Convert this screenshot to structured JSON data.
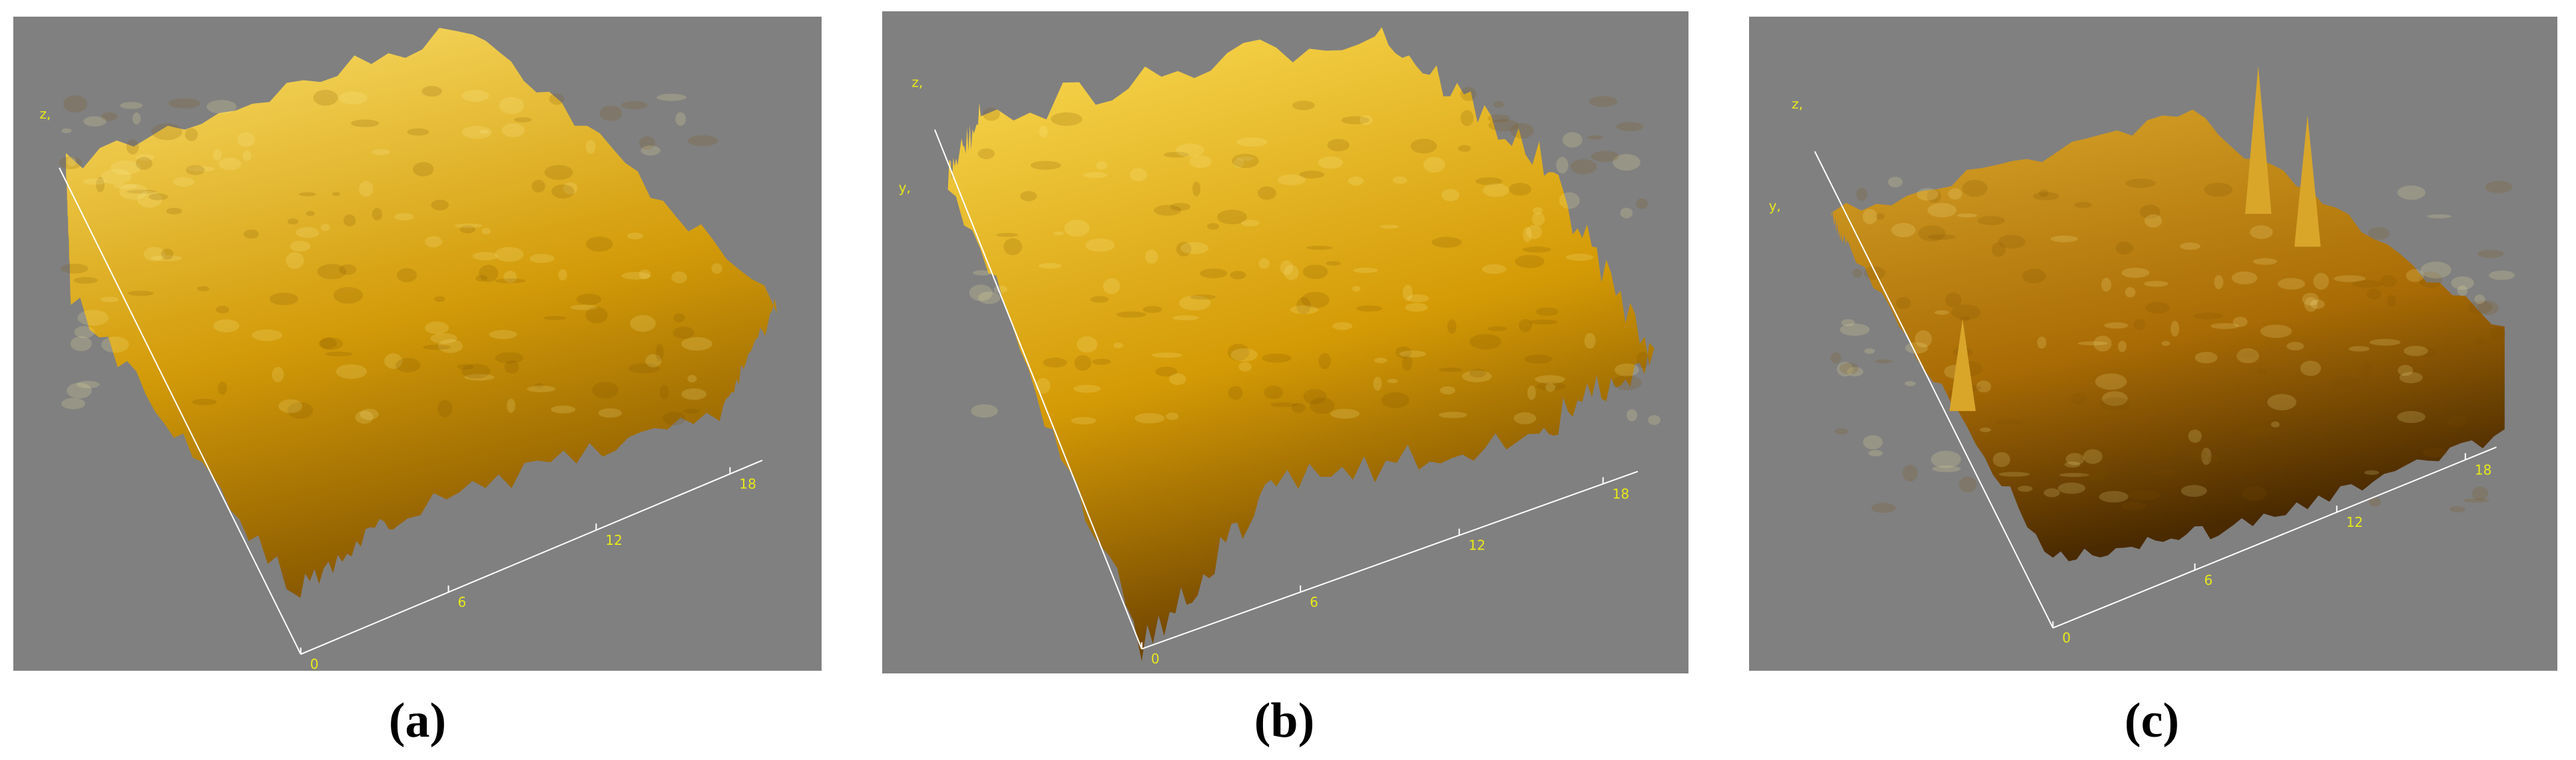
{
  "panels": [
    {
      "label": "(a)",
      "axis_labels": [
        "z,"
      ],
      "axis_ticks": [
        "0",
        "6",
        "12",
        "18"
      ]
    },
    {
      "label": "(b)",
      "axis_labels": [
        "z,",
        "y,"
      ],
      "axis_ticks": [
        "0",
        "6",
        "12",
        "18"
      ]
    },
    {
      "label": "(c)",
      "axis_labels": [
        "z,",
        "y,"
      ],
      "axis_ticks": [
        "0",
        "6",
        "12",
        "18"
      ]
    }
  ]
}
